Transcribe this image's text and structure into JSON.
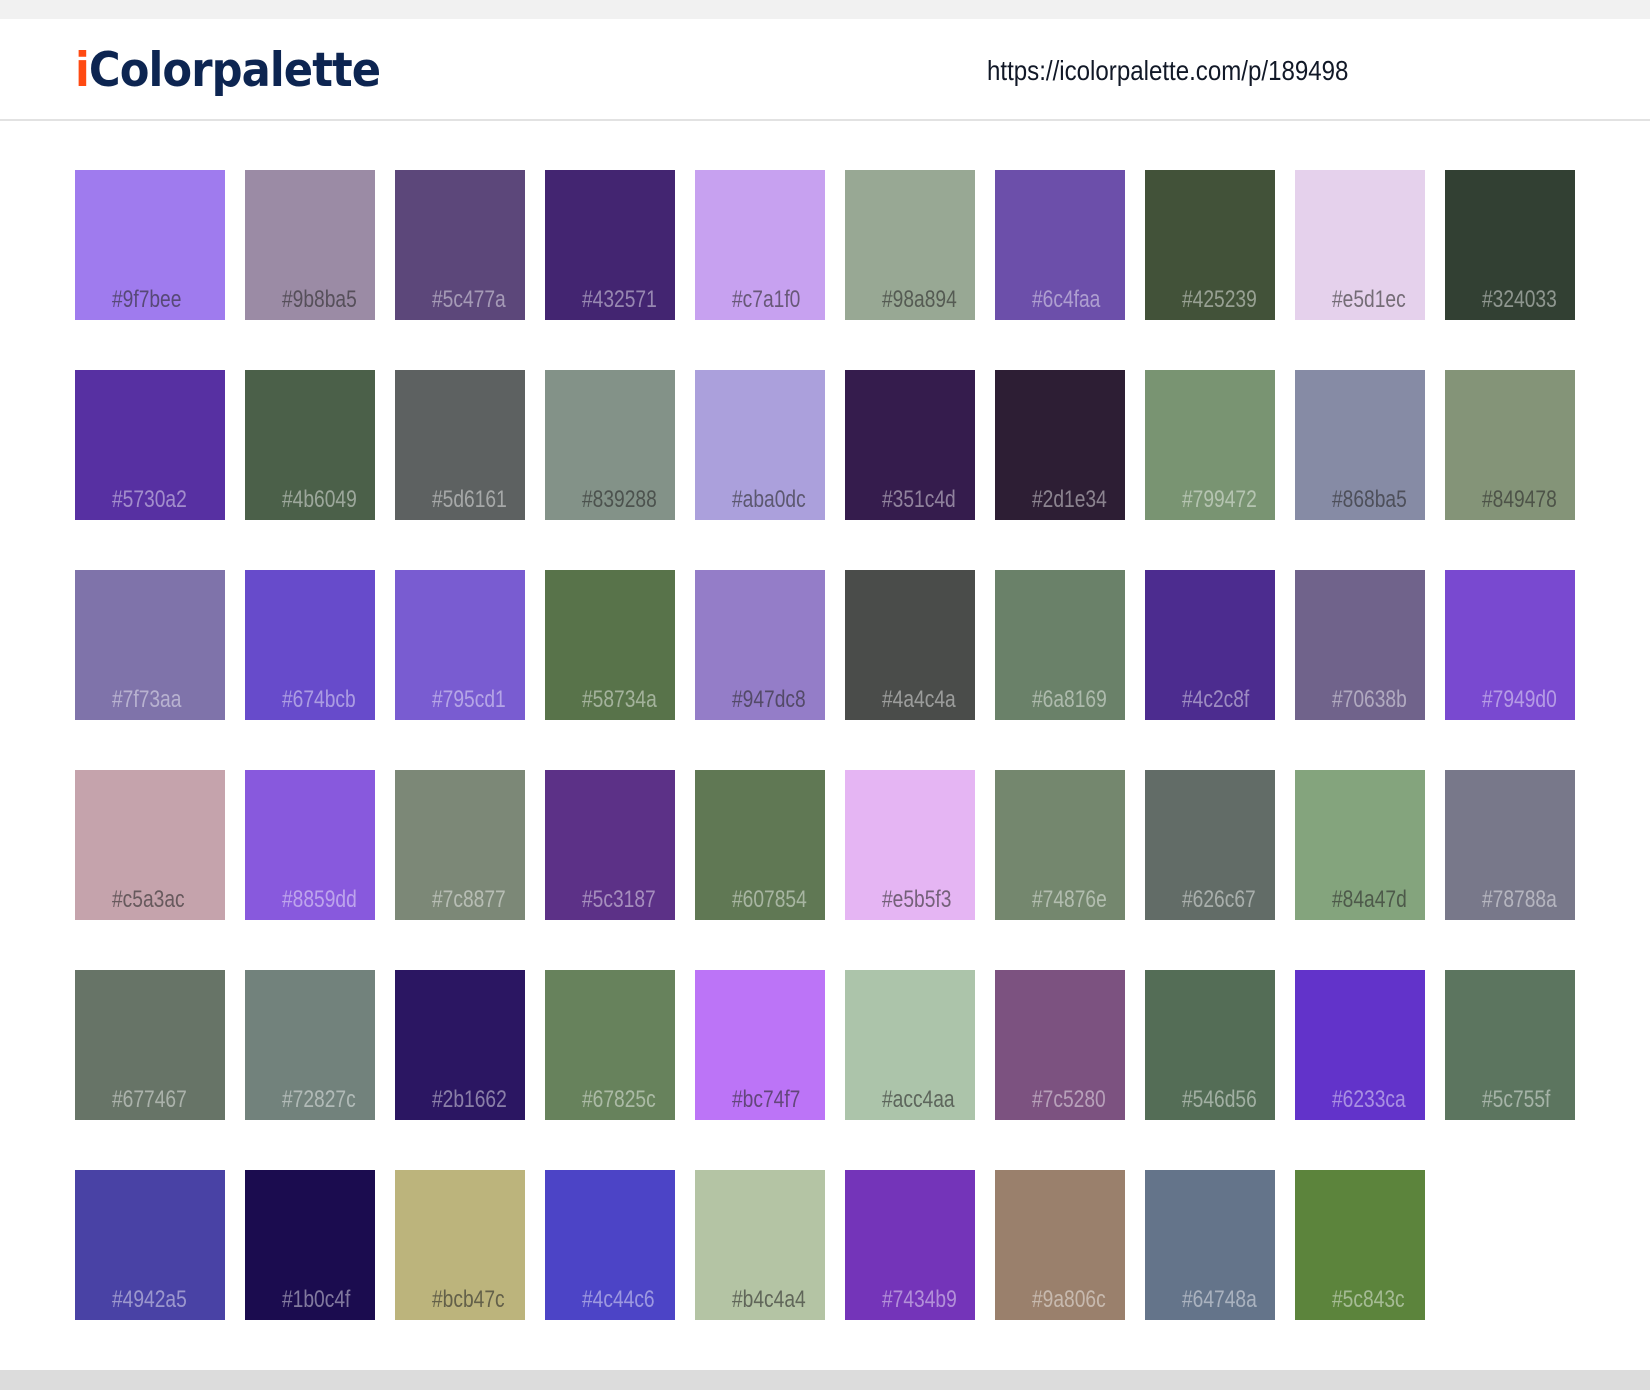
{
  "header": {
    "logo_i": "i",
    "logo_rest": "Colorpalette",
    "url": "https://icolorpalette.com/p/189498"
  },
  "colors": {
    "logo_i": "#ff4a12",
    "logo_text": "#0d2551"
  },
  "swatches": [
    [
      "#9f7bee",
      "#9b8ba5",
      "#5c477a",
      "#432571",
      "#c7a1f0",
      "#98a894",
      "#6c4faa",
      "#425239",
      "#e5d1ec",
      "#324033"
    ],
    [
      "#5730a2",
      "#4b6049",
      "#5d6161",
      "#839288",
      "#aba0dc",
      "#351c4d",
      "#2d1e34",
      "#799472",
      "#868ba5",
      "#849478"
    ],
    [
      "#7f73aa",
      "#674bcb",
      "#795cd1",
      "#58734a",
      "#947dc8",
      "#4a4c4a",
      "#6a8169",
      "#4c2c8f",
      "#70638b",
      "#7949d0"
    ],
    [
      "#c5a3ac",
      "#8859dd",
      "#7c8877",
      "#5c3187",
      "#607854",
      "#e5b5f3",
      "#74876e",
      "#626c67",
      "#84a47d",
      "#78788a"
    ],
    [
      "#677467",
      "#72827c",
      "#2b1662",
      "#67825c",
      "#bc74f7",
      "#acc4aa",
      "#7c5280",
      "#546d56",
      "#6233ca",
      "#5c755f"
    ],
    [
      "#4942a5",
      "#1b0c4f",
      "#bcb47c",
      "#4c44c6",
      "#b4c4a4",
      "#7434b9",
      "#9a806c",
      "#64748a",
      "#5c843c"
    ]
  ]
}
